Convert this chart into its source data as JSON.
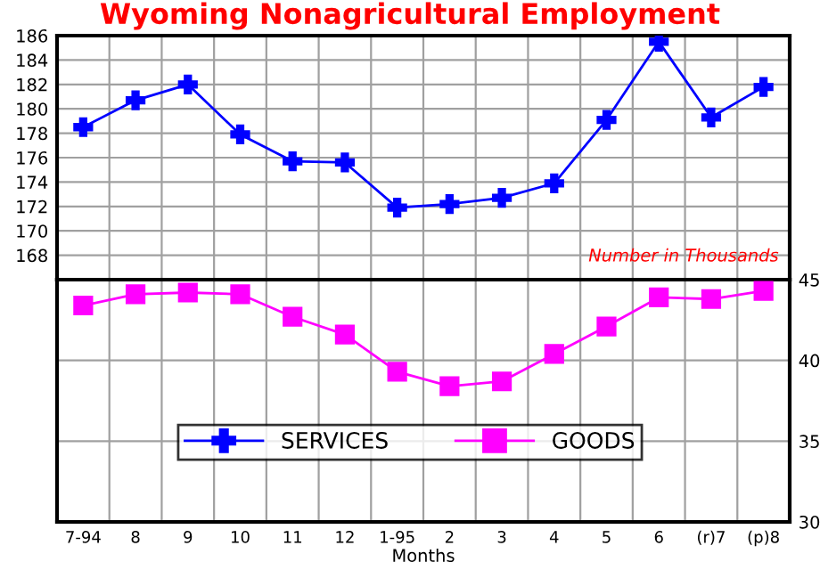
{
  "chart_data": [
    {
      "type": "line",
      "title": "Wyoming Nonagricultural Employment",
      "categories": [
        null,
        null,
        null,
        null,
        null,
        null,
        null,
        null,
        null,
        null,
        null,
        null,
        null,
        null
      ],
      "series": [
        {
          "name": "SERVICES",
          "color": "#0000ff",
          "marker": "cross",
          "values": [
            178.5,
            180.7,
            182.0,
            177.9,
            175.7,
            175.6,
            171.9,
            172.2,
            172.7,
            173.9,
            179.1,
            185.5,
            179.3,
            181.8
          ]
        }
      ],
      "ylim": [
        166,
        186
      ],
      "yticks": [
        {
          "value": 166,
          "label": null
        },
        168,
        170,
        172,
        174,
        176,
        178,
        180,
        182,
        184,
        186
      ],
      "grid": true,
      "tick_labels": "y",
      "annotations": [
        "Number in Thousands"
      ]
    },
    {
      "type": "line",
      "categories": [
        "7-94",
        "8",
        "9",
        "10",
        "11",
        "12",
        "1-95",
        "2",
        "3",
        "4",
        "5",
        "6",
        "(r)7",
        "(p)8"
      ],
      "series": [
        {
          "name": "GOODS",
          "color": "#ff00ff",
          "marker": "square",
          "values": [
            43.4,
            44.1,
            44.2,
            44.1,
            42.7,
            41.6,
            39.3,
            38.4,
            38.7,
            40.4,
            42.1,
            43.9,
            43.8,
            44.3
          ]
        }
      ],
      "ylim": [
        30,
        45
      ],
      "yticks": [
        30,
        35,
        40,
        45
      ],
      "grid": true,
      "legend": "bottom",
      "xlabel": "Months"
    }
  ]
}
